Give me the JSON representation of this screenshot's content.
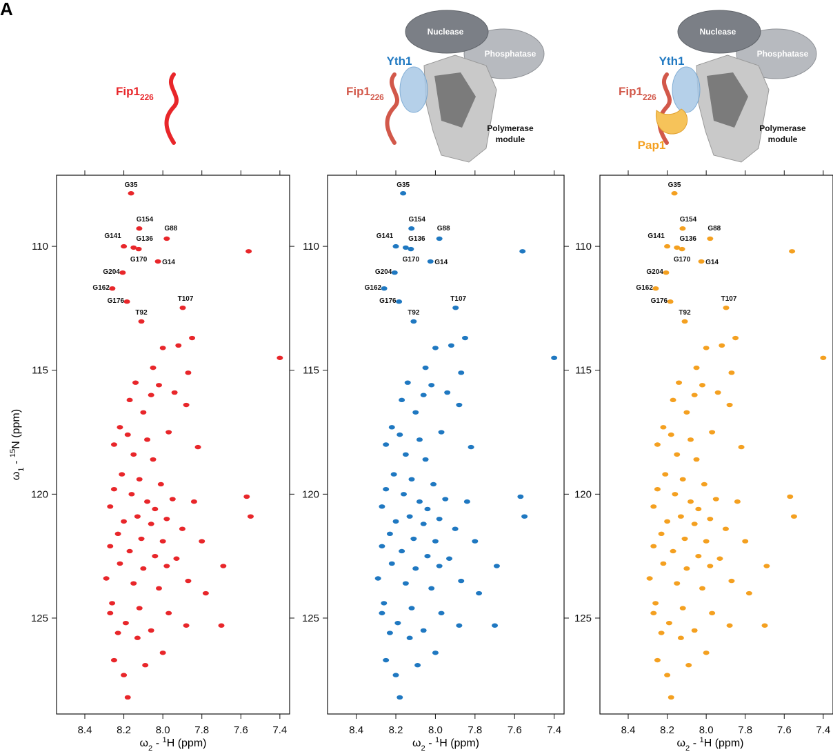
{
  "panel_label": "A",
  "schematics": [
    {
      "fip1": [
        "Fip1",
        "226"
      ]
    },
    {
      "fip1": [
        "Fip1",
        "226"
      ],
      "yth1": "Yth1",
      "nuclease": "Nuclease",
      "phosphatase": "Phosphatase",
      "polymerase": [
        "Polymerase",
        "module"
      ]
    },
    {
      "fip1": [
        "Fip1",
        "226"
      ],
      "yth1": "Yth1",
      "nuclease": "Nuclease",
      "phosphatase": "Phosphatase",
      "polymerase": [
        "Polymerase",
        "module"
      ],
      "pap1": "Pap1"
    }
  ],
  "chart_data": [
    {
      "type": "scatter",
      "color": "#e8262a",
      "xlabel": [
        "ω",
        "2",
        " - ",
        "1",
        "H  (ppm)"
      ],
      "ylabel": [
        "ω",
        "1",
        " - ",
        "15",
        "N  (ppm)"
      ],
      "xlim": [
        8.545,
        7.35
      ],
      "ylim": [
        107.13,
        128.87
      ],
      "xticks": [
        8.4,
        8.2,
        {
          "value": 8.0,
          "label": "8.0"
        },
        7.8,
        7.6,
        7.4
      ],
      "yticks": [
        110,
        115,
        120,
        125
      ],
      "x": [
        7.56,
        7.85,
        7.92,
        8.0,
        8.05,
        7.87,
        8.14,
        8.02,
        7.94,
        8.06,
        8.17,
        7.88,
        8.1,
        8.22,
        7.97,
        8.18,
        8.08,
        8.25,
        7.82,
        8.15,
        8.05,
        8.21,
        8.12,
        8.01,
        8.25,
        8.16,
        7.95,
        8.08,
        7.57,
        7.84,
        8.27,
        8.04,
        8.13,
        7.98,
        8.2,
        7.55,
        8.06,
        7.9,
        8.23,
        8.11,
        8.0,
        7.8,
        8.27,
        8.17,
        8.04,
        7.93,
        8.22,
        8.1,
        7.98,
        7.69,
        8.29,
        8.15,
        8.02,
        7.87,
        7.78,
        8.26,
        8.12,
        7.97,
        8.27,
        8.19,
        8.06,
        7.88,
        7.7,
        8.23,
        8.13,
        8.0,
        8.25,
        8.09,
        8.2,
        8.18,
        7.4
      ],
      "y": [
        110.2,
        113.7,
        114.0,
        114.1,
        114.9,
        115.1,
        115.5,
        115.6,
        115.9,
        116.0,
        116.2,
        116.4,
        116.7,
        117.3,
        117.5,
        117.6,
        117.8,
        118.0,
        118.1,
        118.4,
        118.6,
        119.2,
        119.4,
        119.6,
        119.8,
        120.0,
        120.2,
        120.3,
        120.1,
        120.3,
        120.5,
        120.6,
        120.9,
        121.0,
        121.1,
        120.9,
        121.2,
        121.4,
        121.6,
        121.8,
        121.9,
        121.9,
        122.1,
        122.3,
        122.5,
        122.6,
        122.8,
        123.0,
        122.9,
        122.9,
        123.4,
        123.6,
        123.8,
        123.5,
        124.0,
        124.4,
        124.6,
        124.8,
        124.8,
        125.2,
        125.5,
        125.3,
        125.3,
        125.6,
        125.8,
        126.4,
        126.7,
        126.9,
        127.3,
        128.2,
        114.5
      ],
      "annotations": [
        {
          "text": "G35",
          "x": 8.163,
          "y": 107.86
        },
        {
          "text": "G154",
          "x": 8.121,
          "y": 109.28
        },
        {
          "text": "G88",
          "x": 7.98,
          "y": 109.69
        },
        {
          "text": "G141",
          "x": 8.2,
          "y": 110.0
        },
        {
          "text": "G136",
          "x": 8.15,
          "y": 110.05
        },
        {
          "text": "G170",
          "x": 8.124,
          "y": 110.11
        },
        {
          "text": "G14",
          "x": 8.025,
          "y": 110.61
        },
        {
          "text": "G204",
          "x": 8.206,
          "y": 111.06
        },
        {
          "text": "G162",
          "x": 8.259,
          "y": 111.7
        },
        {
          "text": "G176",
          "x": 8.184,
          "y": 112.23
        },
        {
          "text": "T92",
          "x": 8.11,
          "y": 113.03
        },
        {
          "text": "T107",
          "x": 7.898,
          "y": 112.48
        }
      ]
    },
    {
      "type": "scatter",
      "color": "#1f78c1",
      "xlabel": [
        "ω",
        "2",
        " - ",
        "1",
        "H  (ppm)"
      ],
      "xlim": [
        8.545,
        7.35
      ],
      "ylim": [
        107.13,
        128.87
      ],
      "xticks": [
        8.4,
        8.2,
        {
          "value": 8.0,
          "label": "8.0"
        },
        7.8,
        7.6,
        7.4
      ],
      "yticks": [
        110,
        115,
        120,
        125
      ],
      "x": [
        7.56,
        7.85,
        7.92,
        8.0,
        8.05,
        7.87,
        8.14,
        8.02,
        7.94,
        8.06,
        8.17,
        7.88,
        8.1,
        8.22,
        7.97,
        8.18,
        8.08,
        8.25,
        7.82,
        8.15,
        8.05,
        8.21,
        8.12,
        8.01,
        8.25,
        8.16,
        7.95,
        8.08,
        7.57,
        7.84,
        8.27,
        8.04,
        8.13,
        7.98,
        8.2,
        7.55,
        8.06,
        7.9,
        8.23,
        8.11,
        8.0,
        7.8,
        8.27,
        8.17,
        8.04,
        7.93,
        8.22,
        8.1,
        7.98,
        7.69,
        8.29,
        8.15,
        8.02,
        7.87,
        7.78,
        8.26,
        8.12,
        7.97,
        8.27,
        8.19,
        8.06,
        7.88,
        7.7,
        8.23,
        8.13,
        8.0,
        8.25,
        8.09,
        8.2,
        8.18,
        7.4
      ],
      "y": [
        110.2,
        113.7,
        114.0,
        114.1,
        114.9,
        115.1,
        115.5,
        115.6,
        115.9,
        116.0,
        116.2,
        116.4,
        116.7,
        117.3,
        117.5,
        117.6,
        117.8,
        118.0,
        118.1,
        118.4,
        118.6,
        119.2,
        119.4,
        119.6,
        119.8,
        120.0,
        120.2,
        120.3,
        120.1,
        120.3,
        120.5,
        120.6,
        120.9,
        121.0,
        121.1,
        120.9,
        121.2,
        121.4,
        121.6,
        121.8,
        121.9,
        121.9,
        122.1,
        122.3,
        122.5,
        122.6,
        122.8,
        123.0,
        122.9,
        122.9,
        123.4,
        123.6,
        123.8,
        123.5,
        124.0,
        124.4,
        124.6,
        124.8,
        124.8,
        125.2,
        125.5,
        125.3,
        125.3,
        125.6,
        125.8,
        126.4,
        126.7,
        126.9,
        127.3,
        128.2,
        114.5
      ],
      "annotations": [
        {
          "text": "G35",
          "x": 8.163,
          "y": 107.86
        },
        {
          "text": "G154",
          "x": 8.121,
          "y": 109.28
        },
        {
          "text": "G88",
          "x": 7.98,
          "y": 109.69
        },
        {
          "text": "G141",
          "x": 8.2,
          "y": 110.0
        },
        {
          "text": "G136",
          "x": 8.15,
          "y": 110.05
        },
        {
          "text": "G170",
          "x": 8.124,
          "y": 110.11
        },
        {
          "text": "G14",
          "x": 8.025,
          "y": 110.61
        },
        {
          "text": "G204",
          "x": 8.206,
          "y": 111.06
        },
        {
          "text": "G162",
          "x": 8.259,
          "y": 111.7
        },
        {
          "text": "G176",
          "x": 8.184,
          "y": 112.23
        },
        {
          "text": "T92",
          "x": 8.11,
          "y": 113.03
        },
        {
          "text": "T107",
          "x": 7.898,
          "y": 112.48
        }
      ]
    },
    {
      "type": "scatter",
      "color": "#f4a020",
      "xlabel": [
        "ω",
        "2",
        " - ",
        "1",
        "H  (ppm)"
      ],
      "xlim": [
        8.545,
        7.35
      ],
      "ylim": [
        107.13,
        128.87
      ],
      "xticks": [
        8.4,
        8.2,
        {
          "value": 8.0,
          "label": "8.0"
        },
        7.8,
        7.6,
        7.4
      ],
      "yticks": [
        110,
        115,
        120,
        125
      ],
      "x": [
        7.56,
        7.85,
        7.92,
        8.0,
        8.05,
        7.87,
        8.14,
        8.02,
        7.94,
        8.06,
        8.17,
        7.88,
        8.1,
        8.22,
        7.97,
        8.18,
        8.08,
        8.25,
        7.82,
        8.15,
        8.05,
        8.21,
        8.12,
        8.01,
        8.25,
        8.16,
        7.95,
        8.08,
        7.57,
        7.84,
        8.27,
        8.04,
        8.13,
        7.98,
        8.2,
        7.55,
        8.06,
        7.9,
        8.23,
        8.11,
        8.0,
        7.8,
        8.27,
        8.17,
        8.04,
        7.93,
        8.22,
        8.1,
        7.98,
        7.69,
        8.29,
        8.15,
        8.02,
        7.87,
        7.78,
        8.26,
        8.12,
        7.97,
        8.27,
        8.19,
        8.06,
        7.88,
        7.7,
        8.23,
        8.13,
        8.0,
        8.25,
        8.09,
        8.2,
        8.18,
        7.4
      ],
      "y": [
        110.2,
        113.7,
        114.0,
        114.1,
        114.9,
        115.1,
        115.5,
        115.6,
        115.9,
        116.0,
        116.2,
        116.4,
        116.7,
        117.3,
        117.5,
        117.6,
        117.8,
        118.0,
        118.1,
        118.4,
        118.6,
        119.2,
        119.4,
        119.6,
        119.8,
        120.0,
        120.2,
        120.3,
        120.1,
        120.3,
        120.5,
        120.6,
        120.9,
        121.0,
        121.1,
        120.9,
        121.2,
        121.4,
        121.6,
        121.8,
        121.9,
        121.9,
        122.1,
        122.3,
        122.5,
        122.6,
        122.8,
        123.0,
        122.9,
        122.9,
        123.4,
        123.6,
        123.8,
        123.5,
        124.0,
        124.4,
        124.6,
        124.8,
        124.8,
        125.2,
        125.5,
        125.3,
        125.3,
        125.6,
        125.8,
        126.4,
        126.7,
        126.9,
        127.3,
        128.2,
        114.5
      ],
      "annotations": [
        {
          "text": "G35",
          "x": 8.163,
          "y": 107.86
        },
        {
          "text": "G154",
          "x": 8.121,
          "y": 109.28
        },
        {
          "text": "G88",
          "x": 7.98,
          "y": 109.69
        },
        {
          "text": "G141",
          "x": 8.2,
          "y": 110.0
        },
        {
          "text": "G136",
          "x": 8.15,
          "y": 110.05
        },
        {
          "text": "G170",
          "x": 8.124,
          "y": 110.11
        },
        {
          "text": "G14",
          "x": 8.025,
          "y": 110.61
        },
        {
          "text": "G204",
          "x": 8.206,
          "y": 111.06
        },
        {
          "text": "G162",
          "x": 8.259,
          "y": 111.7
        },
        {
          "text": "G176",
          "x": 8.184,
          "y": 112.23
        },
        {
          "text": "T92",
          "x": 8.11,
          "y": 113.03
        },
        {
          "text": "T107",
          "x": 7.898,
          "y": 112.48
        }
      ]
    }
  ]
}
